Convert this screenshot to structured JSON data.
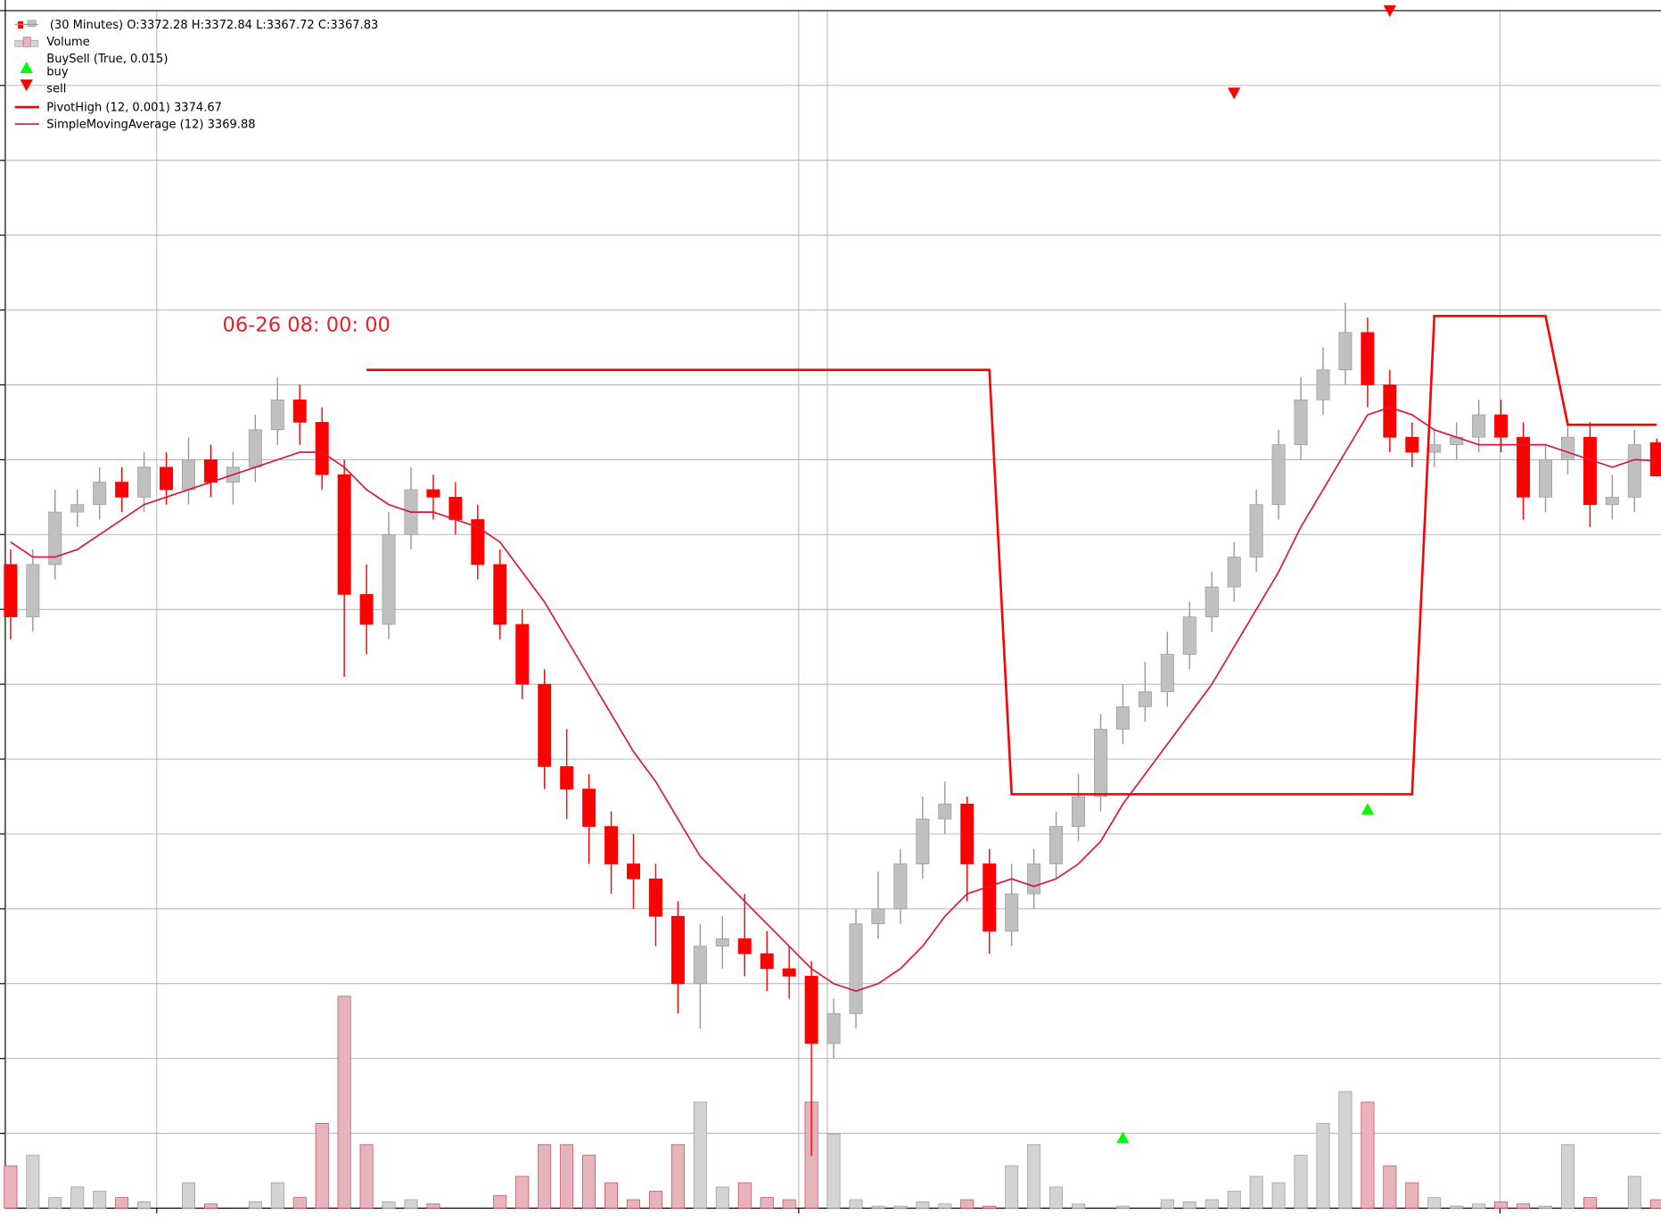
{
  "chart_data": {
    "type": "candlestick",
    "ylim": [
      3270,
      3430
    ],
    "yticks": [
      3280,
      3290,
      3300,
      3310,
      3320,
      3330,
      3340,
      3350,
      3360,
      3370,
      3380,
      3390,
      3400,
      3410,
      3420
    ],
    "grid": true,
    "candles": {
      "name": "(30 Minutes) O:3372.28 H:3372.84 L:3367.72 C:3367.83",
      "up_color": "#c0c0c0",
      "down_color": "#ff0000",
      "open": [
        3356,
        3349,
        3356,
        3363,
        3364,
        3367,
        3365,
        3369,
        3366,
        3370,
        3367,
        3369,
        3374,
        3378,
        3375,
        3368,
        3352,
        3348,
        3360,
        3366,
        3365,
        3362,
        3356,
        3348,
        3340,
        3329,
        3326,
        3321,
        3316,
        3314,
        3309,
        3300,
        3305,
        3306,
        3304,
        3302,
        3301,
        3292,
        3296,
        3308,
        3310,
        3316,
        3322,
        3324,
        3316,
        3307,
        3312,
        3316,
        3321,
        3325,
        3334,
        3337,
        3339,
        3344,
        3349,
        3353,
        3357,
        3364,
        3372,
        3378,
        3382,
        3387,
        3380,
        3373,
        3371,
        3372,
        3373,
        3376,
        3373,
        3365,
        3370,
        3373,
        3364,
        3365,
        3372.28
      ],
      "high": [
        3358,
        3358,
        3366,
        3366,
        3369,
        3369,
        3371,
        3371,
        3373,
        3372,
        3371,
        3376,
        3381,
        3380,
        3377,
        3370,
        3356,
        3363,
        3369,
        3368,
        3367,
        3364,
        3358,
        3350,
        3342,
        3334,
        3328,
        3323,
        3320,
        3316,
        3311,
        3308,
        3309,
        3312,
        3307,
        3305,
        3303,
        3298,
        3310,
        3315,
        3318,
        3325,
        3327,
        3325,
        3318,
        3316,
        3318,
        3323,
        3328,
        3336,
        3340,
        3343,
        3347,
        3351,
        3355,
        3359,
        3366,
        3374,
        3381,
        3385,
        3391,
        3389,
        3382,
        3375,
        3374,
        3375,
        3378,
        3378,
        3375,
        3372,
        3375,
        3375,
        3368,
        3374,
        3372.84
      ],
      "low": [
        3346,
        3347,
        3354,
        3361,
        3362,
        3363,
        3363,
        3364,
        3364,
        3365,
        3364,
        3367,
        3372,
        3372,
        3366,
        3341,
        3344,
        3346,
        3358,
        3362,
        3360,
        3354,
        3346,
        3338,
        3326,
        3322,
        3316,
        3312,
        3310,
        3305,
        3296,
        3294,
        3302,
        3301,
        3299,
        3298,
        3277,
        3290,
        3294,
        3306,
        3308,
        3314,
        3320,
        3311,
        3304,
        3305,
        3310,
        3314,
        3319,
        3323,
        3332,
        3335,
        3337,
        3342,
        3347,
        3351,
        3355,
        3362,
        3370,
        3376,
        3380,
        3377,
        3371,
        3369,
        3369,
        3370,
        3371,
        3371,
        3362,
        3363,
        3368,
        3361,
        3362,
        3363,
        3367.72
      ],
      "close": [
        3349,
        3356,
        3363,
        3364,
        3367,
        3365,
        3369,
        3366,
        3370,
        3367,
        3369,
        3374,
        3378,
        3375,
        3368,
        3352,
        3348,
        3360,
        3366,
        3365,
        3362,
        3356,
        3348,
        3340,
        3329,
        3326,
        3321,
        3316,
        3314,
        3309,
        3300,
        3305,
        3306,
        3304,
        3302,
        3301,
        3292,
        3296,
        3308,
        3310,
        3316,
        3322,
        3324,
        3316,
        3307,
        3312,
        3316,
        3321,
        3325,
        3334,
        3337,
        3339,
        3344,
        3349,
        3353,
        3357,
        3364,
        3372,
        3378,
        3382,
        3387,
        3380,
        3373,
        3371,
        3372,
        3373,
        3376,
        3373,
        3365,
        3370,
        3373,
        3364,
        3365,
        3372,
        3367.83
      ]
    },
    "volume": {
      "name": "Volume",
      "vlim": [
        0,
        100
      ],
      "up_color": "#d3d3d3",
      "down_color": "#e8b4bc",
      "values": [
        20,
        25,
        5,
        10,
        8,
        5,
        3,
        0,
        12,
        2,
        0,
        3,
        12,
        5,
        40,
        100,
        30,
        3,
        4,
        2,
        0,
        0,
        6,
        15,
        30,
        30,
        25,
        12,
        4,
        8,
        30,
        50,
        10,
        12,
        5,
        4,
        50,
        35,
        4,
        1,
        1,
        3,
        2,
        4,
        1,
        20,
        30,
        10,
        2,
        0,
        1,
        0,
        4,
        3,
        4,
        8,
        15,
        12,
        25,
        40,
        55,
        50,
        20,
        12,
        5,
        1,
        2,
        3,
        2,
        1,
        30,
        5,
        0,
        15,
        4
      ]
    },
    "marker_group": "BuySell (True, 0.015)",
    "markers": [
      {
        "name": "buy",
        "color": "#00ff00",
        "shape": "up",
        "x": [
          50,
          61
        ],
        "values": [
          3279.4,
          3323.3
        ]
      },
      {
        "name": "sell",
        "color": "#ff0000",
        "shape": "down",
        "x": [
          55,
          62
        ],
        "values": [
          3419,
          3430
        ]
      }
    ],
    "lines": [
      {
        "name": "PivotHigh (12, 0.001) 3374.67",
        "color": "#ff0000",
        "width": 2.2,
        "values": [
          null,
          null,
          null,
          null,
          null,
          null,
          null,
          null,
          null,
          null,
          null,
          null,
          null,
          null,
          null,
          null,
          3382,
          3382,
          3382,
          3382,
          3382,
          3382,
          3382,
          3382,
          3382,
          3382,
          3382,
          3382,
          3382,
          3382,
          3382,
          3382,
          3382,
          3382,
          3382,
          3382,
          3382,
          3382,
          3382,
          3382,
          3382,
          3382,
          3382,
          3382,
          3382,
          3325.3,
          3325.3,
          3325.3,
          3325.3,
          3325.3,
          3325.3,
          3325.3,
          3325.3,
          3325.3,
          3325.3,
          3325.3,
          3325.3,
          3325.3,
          3325.3,
          3325.3,
          3325.3,
          3325.3,
          3325.3,
          3325.3,
          3389.2,
          3389.2,
          3389.2,
          3389.2,
          3389.2,
          3389.2,
          3374.67,
          3374.67,
          3374.67,
          3374.67,
          3374.67
        ]
      },
      {
        "name": "SimpleMovingAverage (12) 3369.88",
        "color": "#dc143c",
        "width": 1.4,
        "values": [
          3359,
          3357,
          3357,
          3358,
          3360,
          3362,
          3364,
          3365,
          3366,
          3367,
          3368,
          3369,
          3370,
          3371,
          3371,
          3369,
          3366,
          3364,
          3363,
          3363,
          3362,
          3361,
          3359,
          3355,
          3351,
          3346,
          3341,
          3336,
          3331,
          3327,
          3322,
          3317,
          3314,
          3311,
          3308,
          3305,
          3302,
          3300,
          3299,
          3300,
          3302,
          3305,
          3309,
          3312,
          3313,
          3314,
          3313,
          3314,
          3316,
          3319,
          3324,
          3328,
          3332,
          3336,
          3340,
          3345,
          3350,
          3355,
          3361,
          3366,
          3371,
          3376,
          3377,
          3376,
          3374,
          3373,
          3372,
          3372,
          3372,
          3372,
          3371,
          3370,
          3369,
          3370,
          3369.88
        ]
      }
    ],
    "annotation": "06-26 08:  00:  00"
  }
}
